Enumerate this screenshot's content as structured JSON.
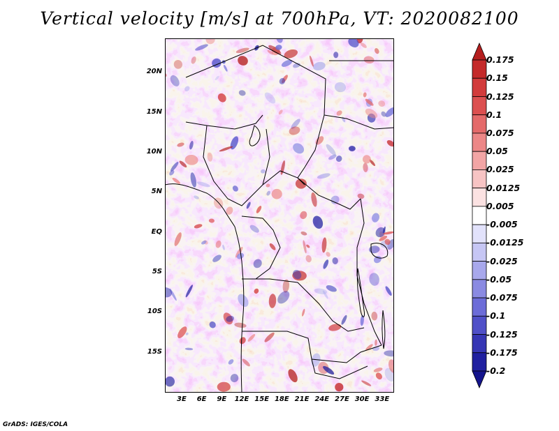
{
  "title": "Vertical velocity [m/s] at 700hPa, VT: 2020082100",
  "footer": "GrADS: IGES/COLA",
  "map": {
    "region": "Central Africa",
    "lat_labels": [
      "20N",
      "15N",
      "10N",
      "5N",
      "EQ",
      "5S",
      "10S",
      "15S"
    ],
    "lon_labels": [
      "3E",
      "6E",
      "9E",
      "12E",
      "15E",
      "18E",
      "21E",
      "24E",
      "27E",
      "30E",
      "33E"
    ],
    "lat_values": [
      20,
      15,
      10,
      5,
      0,
      -5,
      -10,
      -15
    ],
    "lon_values": [
      3,
      6,
      9,
      12,
      15,
      18,
      21,
      24,
      27,
      30,
      33
    ]
  },
  "colorbar": {
    "labels": [
      "0.175",
      "0.15",
      "0.125",
      "0.1",
      "0.075",
      "0.05",
      "0.025",
      "0.0125",
      "0.005",
      "-0.005",
      "-0.0125",
      "-0.025",
      "-0.05",
      "-0.075",
      "-0.1",
      "-0.125",
      "-0.175",
      "-0.2"
    ],
    "colors": [
      "#b41e1e",
      "#c42a2a",
      "#d23c3c",
      "#dc5050",
      "#e46a6a",
      "#ec8787",
      "#f2a5a5",
      "#f7c4c4",
      "#fbe2e2",
      "#ffffff",
      "#e2e2fb",
      "#c6c6f4",
      "#a8a8ec",
      "#8a8ae2",
      "#6c6cd8",
      "#5050c8",
      "#3636b4",
      "#2020a0",
      "#14148c"
    ]
  }
}
